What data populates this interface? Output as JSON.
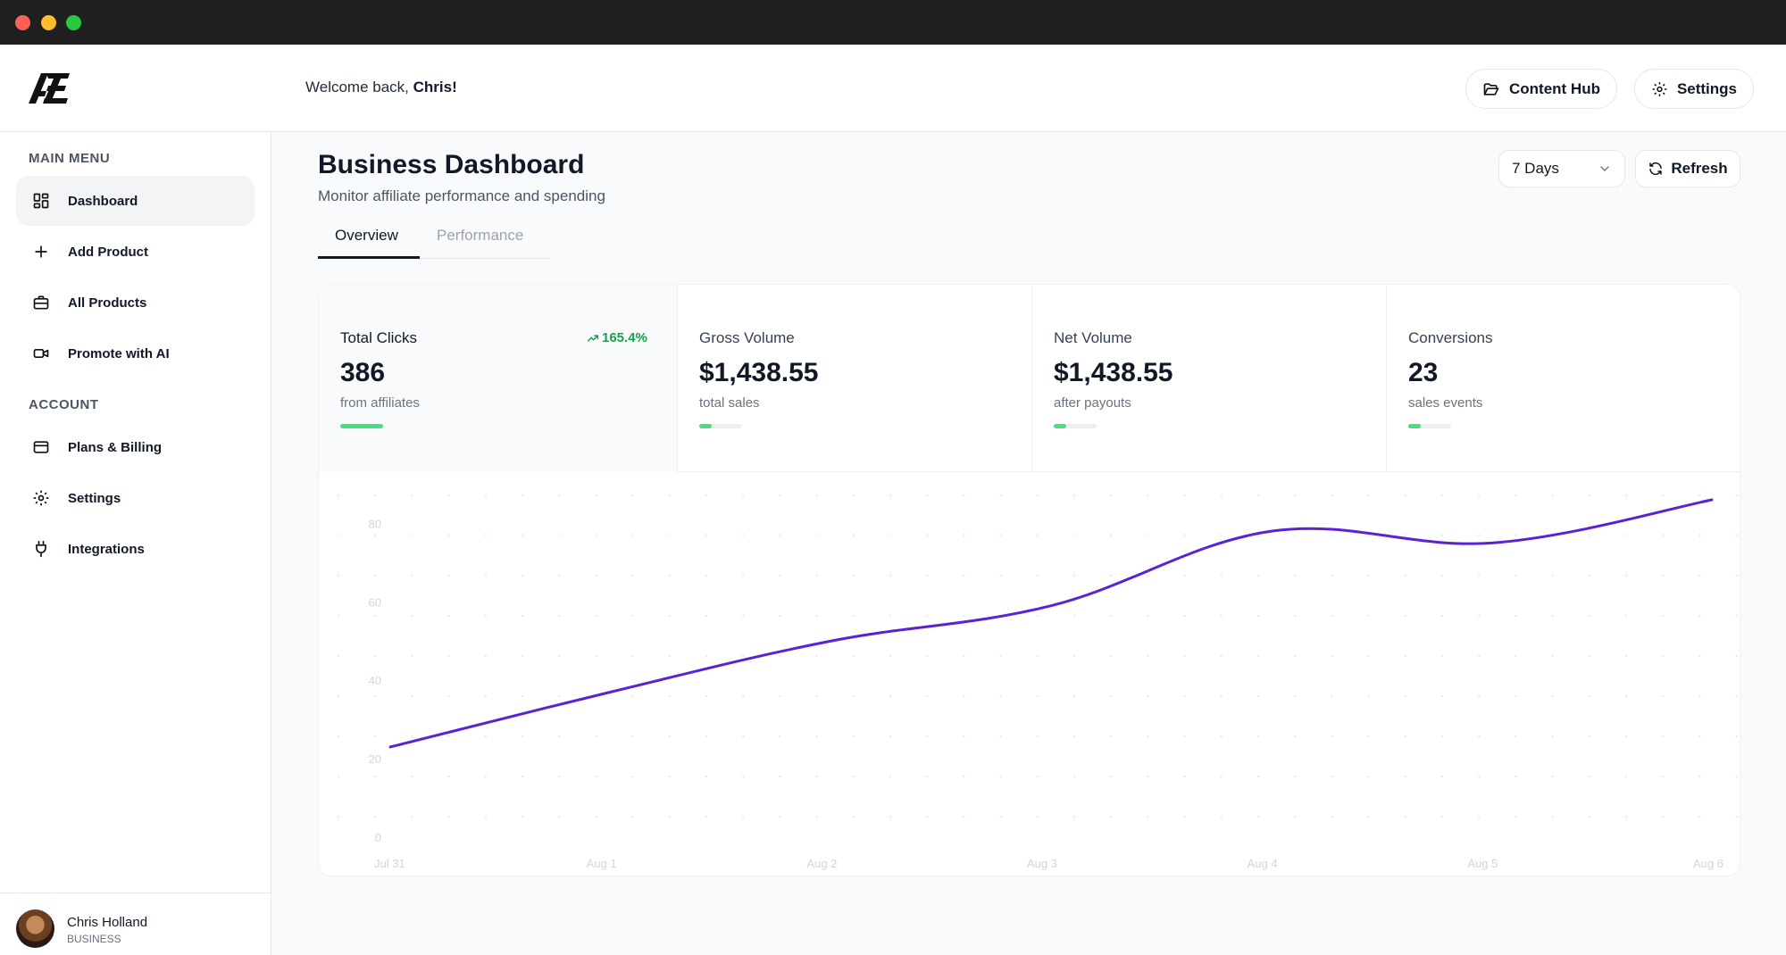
{
  "window": {
    "traffic_lights": [
      "#ff5f57",
      "#febc2e",
      "#28c840"
    ]
  },
  "header": {
    "welcome_prefix": "Welcome back, ",
    "user_first_name": "Chris!",
    "content_hub_label": "Content Hub",
    "settings_label": "Settings"
  },
  "sidebar": {
    "main_menu_title": "MAIN MENU",
    "main_items": [
      {
        "label": "Dashboard",
        "icon": "grid-icon",
        "active": true
      },
      {
        "label": "Add Product",
        "icon": "plus-icon"
      },
      {
        "label": "All Products",
        "icon": "briefcase-icon"
      },
      {
        "label": "Promote with AI",
        "icon": "video-icon"
      }
    ],
    "account_title": "ACCOUNT",
    "account_items": [
      {
        "label": "Plans & Billing",
        "icon": "credit-card-icon"
      },
      {
        "label": "Settings",
        "icon": "gear-icon"
      },
      {
        "label": "Integrations",
        "icon": "plug-icon"
      }
    ],
    "user": {
      "name": "Chris Holland",
      "plan": "BUSINESS"
    }
  },
  "main": {
    "title": "Business Dashboard",
    "subtitle": "Monitor affiliate performance and spending",
    "tabs": [
      {
        "label": "Overview",
        "active": true
      },
      {
        "label": "Performance",
        "active": false
      }
    ],
    "range_select": "7 Days",
    "refresh_label": "Refresh"
  },
  "stats": [
    {
      "label": "Total Clicks",
      "value": "386",
      "sub": "from affiliates",
      "trend": "165.4%",
      "progress": 1.0
    },
    {
      "label": "Gross Volume",
      "value": "$1,438.55",
      "sub": "total sales",
      "progress": 0.3
    },
    {
      "label": "Net Volume",
      "value": "$1,438.55",
      "sub": "after payouts",
      "progress": 0.3
    },
    {
      "label": "Conversions",
      "value": "23",
      "sub": "sales events",
      "progress": 0.3
    }
  ],
  "colors": {
    "accent_line": "#5b21d6",
    "progress_green": "#4ade80",
    "trend_green": "#16a34a"
  },
  "chart_data": {
    "type": "line",
    "x": [
      "Jul 31",
      "Aug 1",
      "Aug 2",
      "Aug 3",
      "Aug 4",
      "Aug 5",
      "Aug 6"
    ],
    "series": [
      {
        "values": [
          23,
          37,
          50,
          59,
          78,
          75,
          86
        ]
      }
    ],
    "ylim": [
      0,
      86
    ],
    "yticks": [
      0,
      20,
      40,
      60,
      80
    ],
    "grid": "dotted",
    "title": "",
    "xlabel": "",
    "ylabel": ""
  }
}
